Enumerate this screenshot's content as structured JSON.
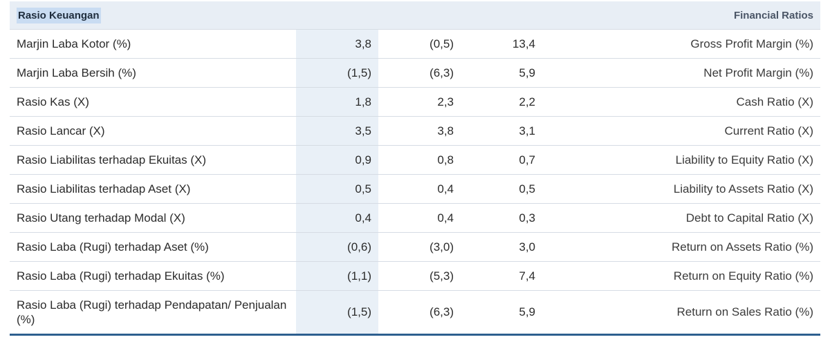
{
  "header": {
    "title_id": "Rasio Keuangan",
    "title_en": "Financial Ratios"
  },
  "rows": [
    {
      "label_id": "Marjin Laba Kotor (%)",
      "v1": "3,8",
      "v2": "(0,5)",
      "v3": "13,4",
      "label_en": "Gross Profit Margin (%)"
    },
    {
      "label_id": "Marjin Laba Bersih (%)",
      "v1": "(1,5)",
      "v2": "(6,3)",
      "v3": "5,9",
      "label_en": "Net Profit Margin (%)"
    },
    {
      "label_id": "Rasio Kas (X)",
      "v1": "1,8",
      "v2": "2,3",
      "v3": "2,2",
      "label_en": "Cash Ratio (X)"
    },
    {
      "label_id": "Rasio Lancar (X)",
      "v1": "3,5",
      "v2": "3,8",
      "v3": "3,1",
      "label_en": "Current Ratio (X)"
    },
    {
      "label_id": "Rasio Liabilitas terhadap Ekuitas (X)",
      "v1": "0,9",
      "v2": "0,8",
      "v3": "0,7",
      "label_en": "Liability to Equity Ratio (X)"
    },
    {
      "label_id": "Rasio Liabilitas terhadap Aset (X)",
      "v1": "0,5",
      "v2": "0,4",
      "v3": "0,5",
      "label_en": "Liability to Assets Ratio (X)"
    },
    {
      "label_id": "Rasio Utang terhadap Modal (X)",
      "v1": "0,4",
      "v2": "0,4",
      "v3": "0,3",
      "label_en": "Debt to Capital Ratio (X)"
    },
    {
      "label_id": "Rasio Laba (Rugi) terhadap Aset (%)",
      "v1": "(0,6)",
      "v2": "(3,0)",
      "v3": "3,0",
      "label_en": "Return on Assets Ratio (%)"
    },
    {
      "label_id": "Rasio Laba (Rugi) terhadap Ekuitas (%)",
      "v1": "(1,1)",
      "v2": "(5,3)",
      "v3": "7,4",
      "label_en": "Return on Equity Ratio (%)"
    },
    {
      "label_id": "Rasio Laba (Rugi) terhadap Pendapatan/ Penjualan (%)",
      "v1": "(1,5)",
      "v2": "(6,3)",
      "v3": "5,9",
      "label_en": "Return on Sales Ratio (%)"
    }
  ],
  "colors": {
    "header_bg": "#e8eef5",
    "highlight_col_bg": "#e9f0f7",
    "bottom_rule": "#2d5f8f"
  }
}
